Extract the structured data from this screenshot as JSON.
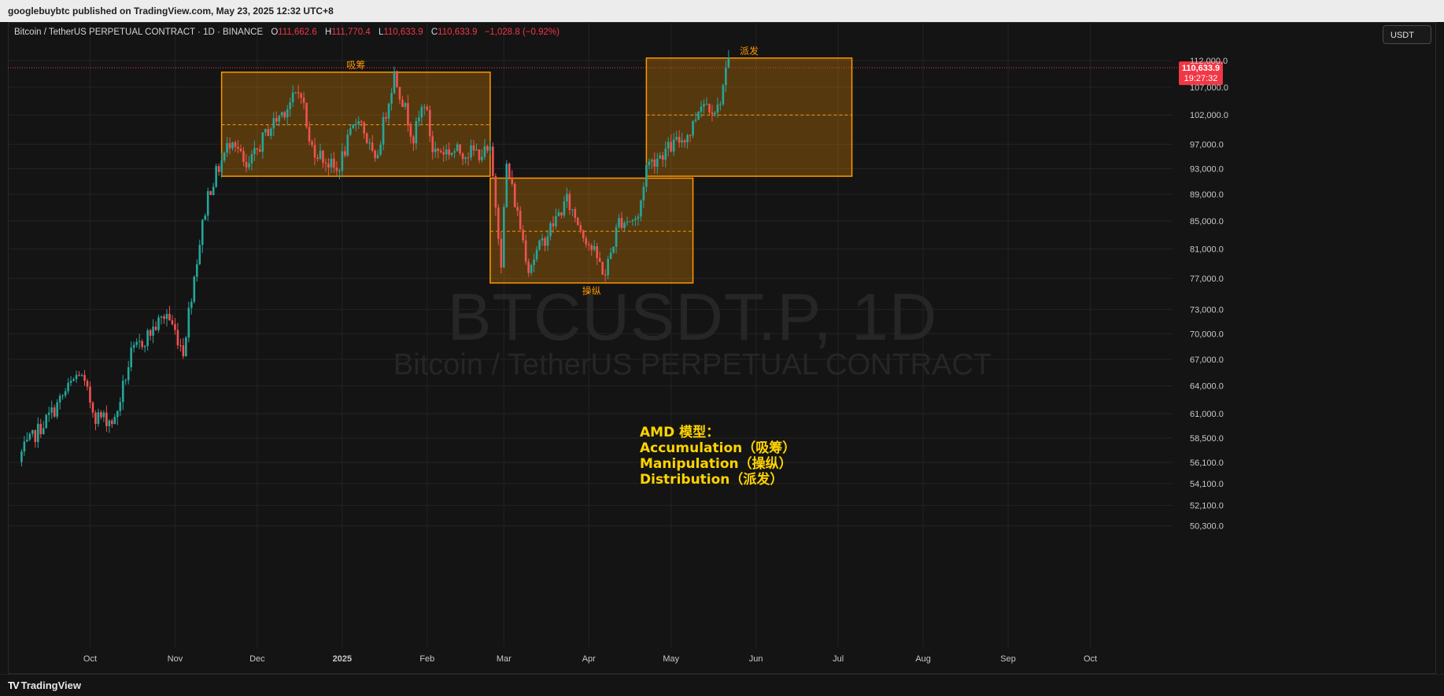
{
  "published": "googlebuybtc published on TradingView.com, May 23, 2025 12:32 UTC+8",
  "legend": {
    "symbol": "Bitcoin / TetherUS PERPETUAL CONTRACT · 1D · BINANCE",
    "open_label": "O",
    "open": "111,662.6",
    "high_label": "H",
    "high": "111,770.4",
    "low_label": "L",
    "low": "110,633.9",
    "close_label": "C",
    "close": "110,633.9",
    "change": "−1,028.8 (−0.92%)"
  },
  "currency_button": "USDT",
  "watermark": {
    "line1": "BTCUSDT.P, 1D",
    "line2": "Bitcoin / TetherUS PERPETUAL CONTRACT"
  },
  "note": {
    "line1": "AMD 模型：",
    "line2": "Accumulation（吸筹）",
    "line3": "Manipulation（操纵）",
    "line4": "Distribution（派发）"
  },
  "footer": {
    "logo_mark": "TV",
    "brand": "TradingView"
  },
  "colors": {
    "up": "#26a69a",
    "down": "#ef5350",
    "box": "#ff9800",
    "box_fill": "rgba(255,152,0,0.28)",
    "price_tag": "#f23645",
    "note": "#ffd400",
    "grid": "#232323",
    "axis_text": "#c8c8c8"
  },
  "chart_data": {
    "type": "candlestick",
    "symbol": "BTCUSDT.P",
    "interval": "1D",
    "x_range": [
      "2024-09-01",
      "2025-10-31"
    ],
    "y_range": [
      49000,
      116500
    ],
    "y_scale": "log",
    "y_ticks": [
      112000,
      107000,
      102000,
      97000,
      93000,
      89000,
      85000,
      81000,
      77000,
      73000,
      70000,
      67000,
      64000,
      61000,
      58500,
      56100,
      54100,
      52100,
      50300
    ],
    "y_tick_labels": [
      "112,000.0",
      "107,000.0",
      "102,000.0",
      "97,000.0",
      "93,000.0",
      "89,000.0",
      "85,000.0",
      "81,000.0",
      "77,000.0",
      "73,000.0",
      "70,000.0",
      "67,000.0",
      "64,000.0",
      "61,000.0",
      "58,500.0",
      "56,100.0",
      "54,100.0",
      "52,100.0",
      "50,300.0"
    ],
    "x_ticks": [
      {
        "date": "2024-10-01",
        "label": "Oct"
      },
      {
        "date": "2024-11-01",
        "label": "Nov"
      },
      {
        "date": "2024-12-01",
        "label": "Dec"
      },
      {
        "date": "2025-01-01",
        "label": "2025"
      },
      {
        "date": "2025-02-01",
        "label": "Feb"
      },
      {
        "date": "2025-03-01",
        "label": "Mar"
      },
      {
        "date": "2025-04-01",
        "label": "Apr"
      },
      {
        "date": "2025-05-01",
        "label": "May"
      },
      {
        "date": "2025-06-01",
        "label": "Jun"
      },
      {
        "date": "2025-07-01",
        "label": "Jul"
      },
      {
        "date": "2025-08-01",
        "label": "Aug"
      },
      {
        "date": "2025-09-01",
        "label": "Sep"
      },
      {
        "date": "2025-10-01",
        "label": "Oct"
      }
    ],
    "last_price": 110633.9,
    "last_price_label": "110,633.9",
    "countdown": "19:27:32",
    "anchors": [
      [
        "2024-09-06",
        57000
      ],
      [
        "2024-09-18",
        61500
      ],
      [
        "2024-09-27",
        65500
      ],
      [
        "2024-10-03",
        60800
      ],
      [
        "2024-10-10",
        60200
      ],
      [
        "2024-10-16",
        67500
      ],
      [
        "2024-10-29",
        72500
      ],
      [
        "2024-11-04",
        68000
      ],
      [
        "2024-11-13",
        89000
      ],
      [
        "2024-11-22",
        98500
      ],
      [
        "2024-11-27",
        92500
      ],
      [
        "2024-12-05",
        99500
      ],
      [
        "2024-12-17",
        106500
      ],
      [
        "2024-12-20",
        97000
      ],
      [
        "2024-12-30",
        92500
      ],
      [
        "2025-01-07",
        102000
      ],
      [
        "2025-01-13",
        93500
      ],
      [
        "2025-01-20",
        109500
      ],
      [
        "2025-01-27",
        98000
      ],
      [
        "2025-01-31",
        104500
      ],
      [
        "2025-02-03",
        96000
      ],
      [
        "2025-02-24",
        95500
      ],
      [
        "2025-02-28",
        79500
      ],
      [
        "2025-03-02",
        93500
      ],
      [
        "2025-03-10",
        78500
      ],
      [
        "2025-03-24",
        88000
      ],
      [
        "2025-03-31",
        82500
      ],
      [
        "2025-04-07",
        77500
      ],
      [
        "2025-04-12",
        85000
      ],
      [
        "2025-04-19",
        85300
      ],
      [
        "2025-04-22",
        93500
      ],
      [
        "2025-05-08",
        99000
      ],
      [
        "2025-05-12",
        104500
      ],
      [
        "2025-05-18",
        103000
      ],
      [
        "2025-05-22",
        111500
      ]
    ],
    "rectangles": [
      {
        "label": "吸筹",
        "start": "2024-11-18",
        "end": "2025-02-24",
        "top": 109800,
        "bottom": 91800,
        "mid": 100300
      },
      {
        "label": "操纵",
        "start": "2025-02-24",
        "end": "2025-05-09",
        "top": 91500,
        "bottom": 76400,
        "mid": 83500
      },
      {
        "label": "派发",
        "start": "2025-04-22",
        "end": "2025-07-06",
        "top": 112500,
        "bottom": 91800,
        "mid": 102000
      }
    ]
  }
}
